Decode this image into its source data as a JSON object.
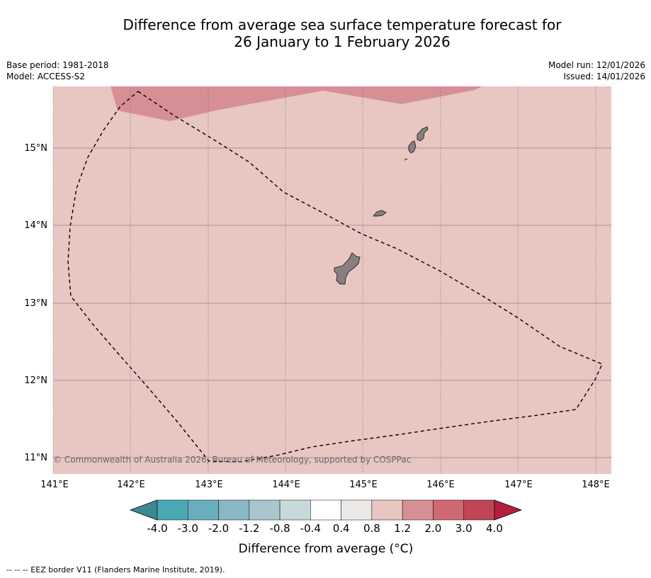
{
  "title": {
    "line1": "Difference from average sea surface temperature forecast for",
    "line2": "26 January to 1 February 2026"
  },
  "meta": {
    "base_period": "Base period: 1981-2018",
    "model": "Model: ACCESS-S2",
    "model_run": "Model run: 12/01/2026",
    "issued": "Issued: 14/01/2026"
  },
  "map": {
    "lon_labels": [
      "141°E",
      "142°E",
      "143°E",
      "144°E",
      "145°E",
      "146°E",
      "147°E",
      "148°E"
    ],
    "lat_labels": [
      "15°N",
      "14°N",
      "13°N",
      "12°N",
      "11°N"
    ],
    "copyright": "© Commonwealth of Australia 2026, Bureau of Meteorology, supported by COSPPac",
    "colors": {
      "ocean_anomaly": "#e8c6c2",
      "warm_patch": "#d78f96",
      "land": "#8a7f7f"
    }
  },
  "colorbar": {
    "tick_labels": [
      "-4.0",
      "-3.0",
      "-2.0",
      "-1.2",
      "-0.8",
      "-0.4",
      "0.4",
      "0.8",
      "1.2",
      "2.0",
      "3.0",
      "4.0"
    ],
    "colors": [
      "#3e8896",
      "#4aa7b4",
      "#6aaebd",
      "#89b7c3",
      "#a8c6cb",
      "#c8d9dc",
      "#ffffff",
      "#ece8e5",
      "#e8c6c2",
      "#d78f96",
      "#cf6872",
      "#c04555",
      "#b31f3d"
    ],
    "label": "Difference from average (°C)"
  },
  "footer": {
    "eez_line": "--  --  -- EEZ border V11 (Flanders Marine Institute, 2019)."
  }
}
